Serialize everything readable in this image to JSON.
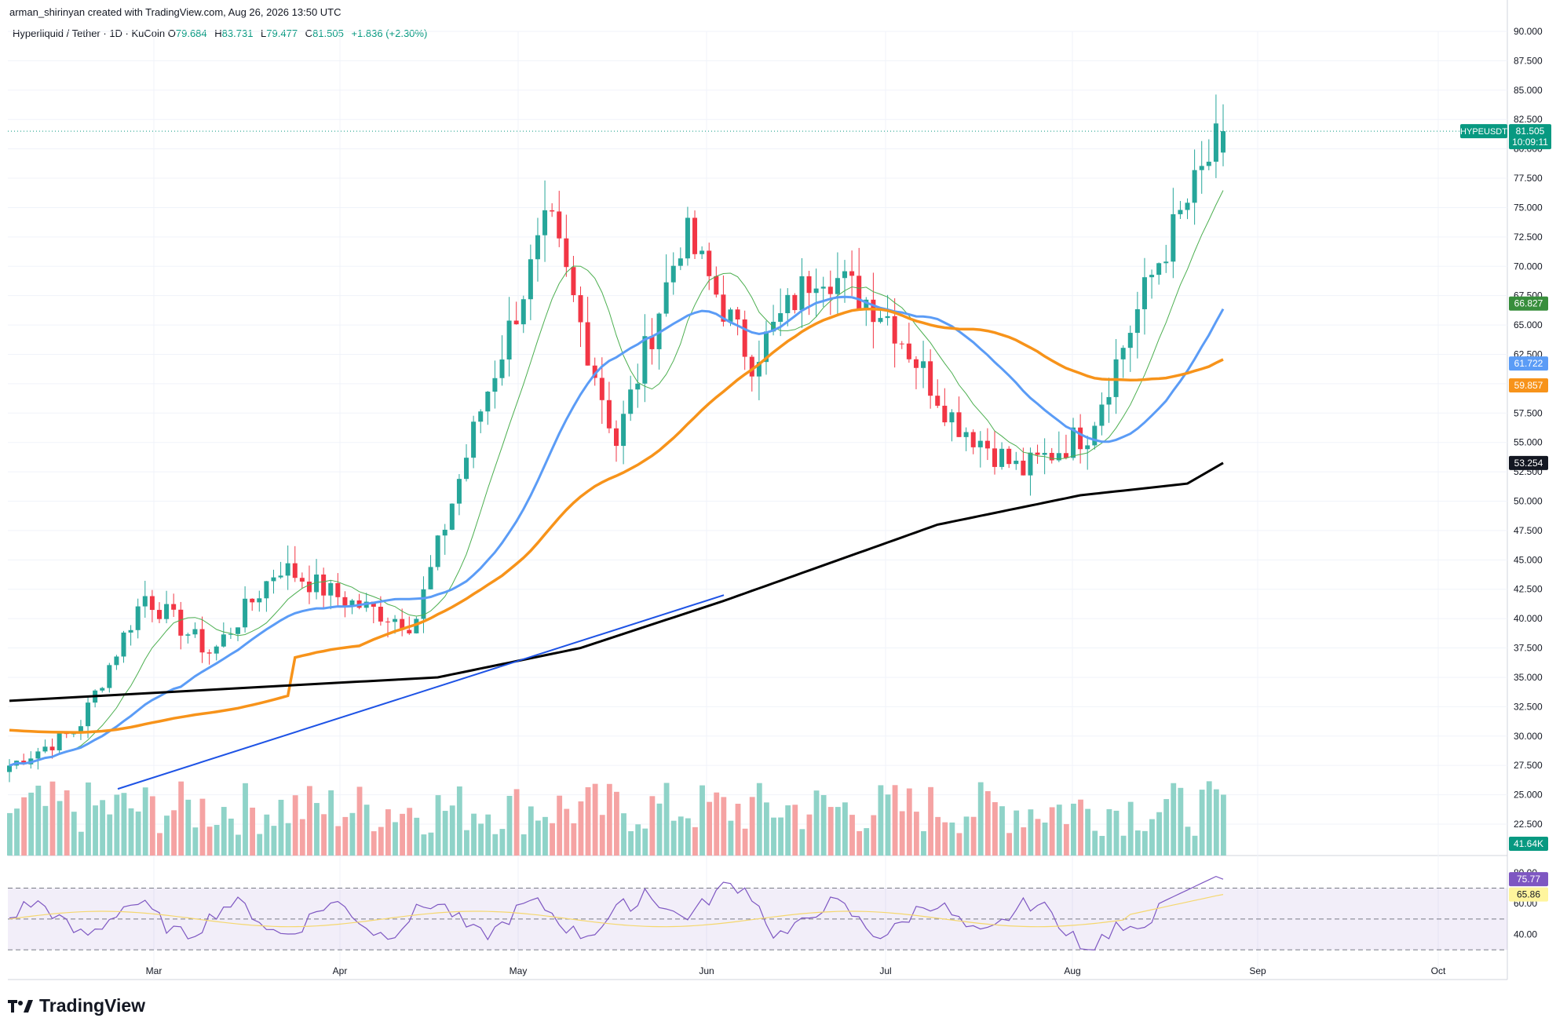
{
  "header": {
    "credit": "arman_shirinyan created with TradingView.com, Aug 26, 2026 13:50 UTC"
  },
  "legend": {
    "symbol": "Hyperliquid / Tether · 1D · KuCoin",
    "o_label": "O",
    "o_value": "79.684",
    "h_label": "H",
    "h_value": "83.731",
    "l_label": "L",
    "l_value": "79.477",
    "c_label": "C",
    "c_value": "81.505",
    "change": "+1.836 (+2.30%)"
  },
  "price_tag": {
    "symbol": "HYPEUSDT",
    "price": "81.505",
    "countdown": "10:09:11"
  },
  "indicator_values": {
    "ma_green": "66.827",
    "ma_blue": "61.722",
    "ma_orange": "59.857",
    "ma_black": "53.254",
    "volume": "41.64K",
    "rsi": "75.77",
    "rsi_ma": "65.86"
  },
  "colors": {
    "up": "#26a69a",
    "down": "#f23645",
    "vol_up": "#8fd3c8",
    "vol_down": "#f5a3a3",
    "ma_green": "#4caf50",
    "ma_blue": "#5b9cf6",
    "ma_orange": "#f7931a",
    "ma_black": "#000000",
    "rsi": "#7e57c2",
    "rsi_ma": "#f5d76e",
    "trendline": "#1e53e5",
    "price_tag": "#089981"
  },
  "brand": {
    "name": "TradingView"
  },
  "chart_data": {
    "type": "candlestick",
    "price_axis": {
      "min": 22.5,
      "max": 90.0,
      "ticks": [
        "90.000",
        "87.500",
        "85.000",
        "82.500",
        "80.000",
        "77.500",
        "75.000",
        "72.500",
        "70.000",
        "67.500",
        "65.000",
        "62.500",
        "60.000",
        "57.500",
        "55.000",
        "52.500",
        "50.000",
        "47.500",
        "45.000",
        "42.500",
        "40.000",
        "37.500",
        "35.000",
        "32.500",
        "30.000",
        "27.500",
        "25.000",
        "22.500"
      ]
    },
    "time_axis": {
      "labels": [
        "Mar",
        "Apr",
        "May",
        "Jun",
        "Jul",
        "Aug",
        "Sep",
        "Oct"
      ]
    },
    "rsi_axis": {
      "ticks": [
        "80.00",
        "60.00",
        "40.00"
      ],
      "upper": 70,
      "lower": 30
    },
    "key_closes": [
      {
        "date": "late Feb",
        "close": 27.5
      },
      {
        "date": "Mar",
        "close": 30.5
      },
      {
        "date": "mid Mar",
        "close": 42.0
      },
      {
        "date": "Apr",
        "close": 37.0
      },
      {
        "date": "mid Apr",
        "close": 44.5
      },
      {
        "date": "May",
        "close": 41.5
      },
      {
        "date": "mid May",
        "close": 39.5
      },
      {
        "date": "late May",
        "close": 58.0
      },
      {
        "date": "Jun",
        "close": 74.0
      },
      {
        "date": "mid Jun",
        "close": 55.0
      },
      {
        "date": "mid Jun",
        "close": 73.0
      },
      {
        "date": "late Jun",
        "close": 62.0
      },
      {
        "date": "Jul",
        "close": 70.0
      },
      {
        "date": "mid Jul",
        "close": 66.0
      },
      {
        "date": "late Jul",
        "close": 57.0
      },
      {
        "date": "Aug",
        "close": 52.5
      },
      {
        "date": "mid Aug",
        "close": 56.0
      },
      {
        "date": "Aug 20",
        "close": 70.0
      },
      {
        "date": "Aug 26",
        "close": 81.505
      }
    ],
    "trendline": {
      "from": {
        "date": "late Feb",
        "price": 25.5
      },
      "to": {
        "date": "early Jun",
        "price": 42.0
      }
    }
  }
}
